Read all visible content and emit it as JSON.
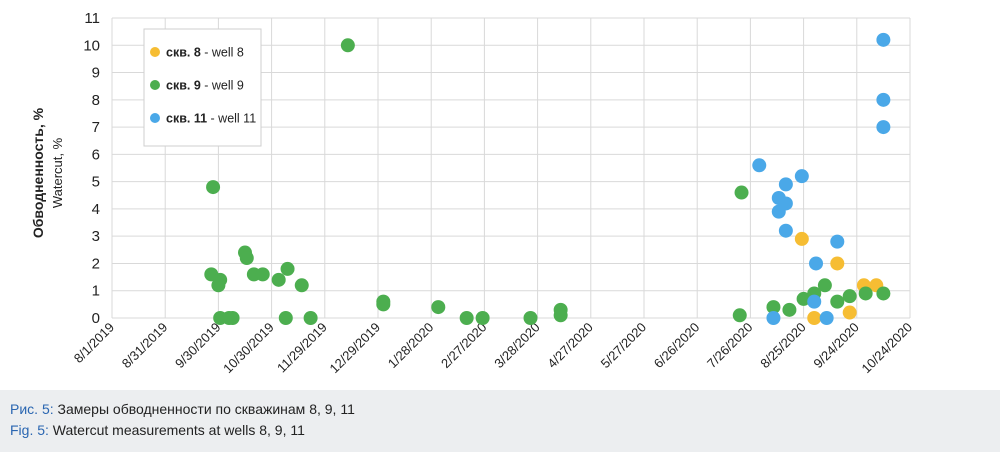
{
  "colors": {
    "well8": "#f6bd33",
    "well9": "#4cae4f",
    "well11": "#4aa8e8",
    "grid": "#d9d9d9",
    "caption_bg": "#eceef0",
    "caption_prefix": "#2a66b1"
  },
  "chart_data": {
    "type": "scatter",
    "ylabel_ru": "Обводненность, %",
    "ylabel_en": "Watercut, %",
    "ylim": [
      0,
      11
    ],
    "yticks": [
      0,
      1,
      2,
      3,
      4,
      5,
      6,
      7,
      8,
      9,
      10,
      11
    ],
    "xlim": [
      "2019-08-01",
      "2020-10-24"
    ],
    "xtick_dates": [
      "2019-08-01",
      "2019-08-31",
      "2019-09-30",
      "2019-10-30",
      "2019-11-29",
      "2019-12-29",
      "2020-01-28",
      "2020-02-27",
      "2020-03-28",
      "2020-04-27",
      "2020-05-27",
      "2020-06-26",
      "2020-07-26",
      "2020-08-25",
      "2020-09-24",
      "2020-10-24"
    ],
    "xtick_labels": [
      "8/1/2019",
      "8/31/2019",
      "9/30/2019",
      "10/30/2019",
      "11/29/2019",
      "12/29/2019",
      "1/28/2020",
      "2/27/2020",
      "3/28/2020",
      "4/27/2020",
      "5/27/2020",
      "6/26/2020",
      "7/26/2020",
      "8/25/2020",
      "9/24/2020",
      "10/24/2020"
    ],
    "grid": true,
    "legend_position": "top-left",
    "series": [
      {
        "key": "well8",
        "name_bold": "скв. 8",
        "name_rest": " - well 8",
        "points": [
          {
            "x": "2020-08-24",
            "y": 2.9
          },
          {
            "x": "2020-08-31",
            "y": 0.0
          },
          {
            "x": "2020-09-13",
            "y": 2.0
          },
          {
            "x": "2020-09-20",
            "y": 0.2
          },
          {
            "x": "2020-09-28",
            "y": 1.2
          },
          {
            "x": "2020-10-05",
            "y": 1.2
          }
        ]
      },
      {
        "key": "well9",
        "name_bold": "скв. 9",
        "name_rest": " - well 9",
        "points": [
          {
            "x": "2019-09-27",
            "y": 4.8
          },
          {
            "x": "2019-09-26",
            "y": 1.6
          },
          {
            "x": "2019-10-01",
            "y": 1.4
          },
          {
            "x": "2019-09-30",
            "y": 1.2
          },
          {
            "x": "2019-10-01",
            "y": 0.0
          },
          {
            "x": "2019-10-06",
            "y": 0.0
          },
          {
            "x": "2019-10-08",
            "y": 0.0
          },
          {
            "x": "2019-10-15",
            "y": 2.4
          },
          {
            "x": "2019-10-16",
            "y": 2.2
          },
          {
            "x": "2019-10-20",
            "y": 1.6
          },
          {
            "x": "2019-10-25",
            "y": 1.6
          },
          {
            "x": "2019-11-03",
            "y": 1.4
          },
          {
            "x": "2019-11-08",
            "y": 1.8
          },
          {
            "x": "2019-11-07",
            "y": 0.0
          },
          {
            "x": "2019-11-16",
            "y": 1.2
          },
          {
            "x": "2019-11-21",
            "y": 0.0
          },
          {
            "x": "2019-12-12",
            "y": 10.0
          },
          {
            "x": "2020-01-01",
            "y": 0.6
          },
          {
            "x": "2020-01-01",
            "y": 0.5
          },
          {
            "x": "2020-02-01",
            "y": 0.4
          },
          {
            "x": "2020-02-17",
            "y": 0.0
          },
          {
            "x": "2020-02-26",
            "y": 0.0
          },
          {
            "x": "2020-03-24",
            "y": 0.0
          },
          {
            "x": "2020-04-10",
            "y": 0.3
          },
          {
            "x": "2020-04-10",
            "y": 0.1
          },
          {
            "x": "2020-07-21",
            "y": 4.6
          },
          {
            "x": "2020-07-20",
            "y": 0.1
          },
          {
            "x": "2020-08-08",
            "y": 0.4
          },
          {
            "x": "2020-08-17",
            "y": 0.3
          },
          {
            "x": "2020-08-25",
            "y": 0.7
          },
          {
            "x": "2020-08-31",
            "y": 0.9
          },
          {
            "x": "2020-09-06",
            "y": 1.2
          },
          {
            "x": "2020-09-13",
            "y": 0.6
          },
          {
            "x": "2020-09-20",
            "y": 0.8
          },
          {
            "x": "2020-09-29",
            "y": 0.9
          },
          {
            "x": "2020-10-09",
            "y": 0.9
          }
        ]
      },
      {
        "key": "well11",
        "name_bold": "скв. 11",
        "name_rest": " - well 11",
        "points": [
          {
            "x": "2020-07-31",
            "y": 5.6
          },
          {
            "x": "2020-08-15",
            "y": 4.9
          },
          {
            "x": "2020-08-24",
            "y": 5.2
          },
          {
            "x": "2020-08-11",
            "y": 4.4
          },
          {
            "x": "2020-08-15",
            "y": 4.2
          },
          {
            "x": "2020-08-11",
            "y": 3.9
          },
          {
            "x": "2020-08-15",
            "y": 3.2
          },
          {
            "x": "2020-09-13",
            "y": 2.8
          },
          {
            "x": "2020-09-01",
            "y": 2.0
          },
          {
            "x": "2020-08-31",
            "y": 0.6
          },
          {
            "x": "2020-08-08",
            "y": 0.0
          },
          {
            "x": "2020-09-07",
            "y": 0.0
          },
          {
            "x": "2020-10-09",
            "y": 10.2
          },
          {
            "x": "2020-10-09",
            "y": 8.0
          },
          {
            "x": "2020-10-09",
            "y": 7.0
          }
        ]
      }
    ]
  },
  "caption": {
    "ru_prefix": "Рис. 5:",
    "ru_text": " Замеры обводненности по скважинам 8, 9, 11",
    "en_prefix": "Fig. 5:",
    "en_text": " Watercut measurements at wells 8, 9, 11"
  }
}
